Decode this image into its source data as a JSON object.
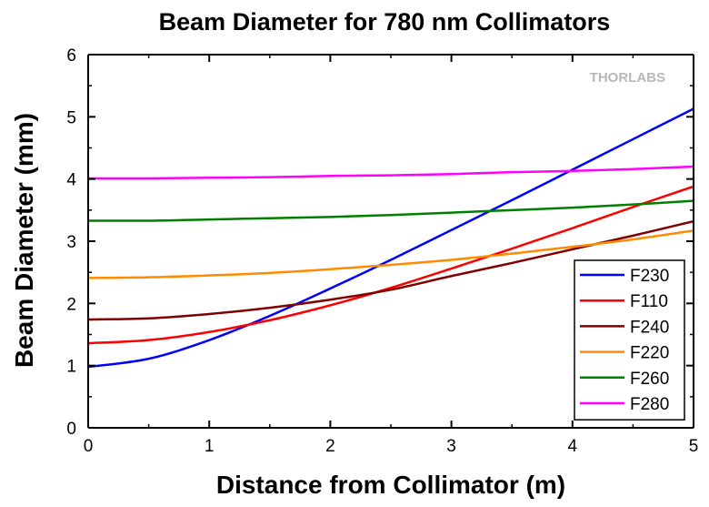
{
  "chart_data": {
    "type": "line",
    "title": "Beam Diameter for 780 nm Collimators",
    "xlabel": "Distance from Collimator (m)",
    "ylabel": "Beam Diameter (mm)",
    "xlim": [
      0,
      5
    ],
    "ylim": [
      0,
      6
    ],
    "xticks": [
      0,
      1,
      2,
      3,
      4,
      5
    ],
    "yticks": [
      0,
      1,
      2,
      3,
      4,
      5,
      6
    ],
    "grid": false,
    "legend_position": "bottom-right",
    "logo": "THORLABS",
    "series": [
      {
        "name": "F230",
        "color": "#0000ff",
        "x": [
          0,
          0.5,
          1,
          1.5,
          2,
          2.5,
          3,
          3.5,
          4,
          4.5,
          5
        ],
        "y": [
          0.98,
          1.11,
          1.41,
          1.8,
          2.24,
          2.7,
          3.18,
          3.66,
          4.15,
          4.64,
          5.13
        ]
      },
      {
        "name": "F110",
        "color": "#ff0000",
        "x": [
          0,
          0.5,
          1,
          1.5,
          2,
          2.5,
          3,
          3.5,
          4,
          4.5,
          5
        ],
        "y": [
          1.36,
          1.41,
          1.54,
          1.73,
          1.97,
          2.25,
          2.56,
          2.88,
          3.21,
          3.55,
          3.88
        ]
      },
      {
        "name": "F240",
        "color": "#800000",
        "x": [
          0,
          0.5,
          1,
          1.5,
          2,
          2.5,
          3,
          3.5,
          4,
          4.5,
          5
        ],
        "y": [
          1.74,
          1.76,
          1.83,
          1.93,
          2.06,
          2.22,
          2.44,
          2.65,
          2.87,
          3.09,
          3.32
        ]
      },
      {
        "name": "F220",
        "color": "#ff8c00",
        "x": [
          0,
          0.5,
          1,
          1.5,
          2,
          2.5,
          3,
          3.5,
          4,
          4.5,
          5
        ],
        "y": [
          2.41,
          2.42,
          2.45,
          2.49,
          2.55,
          2.62,
          2.7,
          2.8,
          2.91,
          3.03,
          3.17
        ]
      },
      {
        "name": "F260",
        "color": "#008000",
        "x": [
          0,
          0.5,
          1,
          1.5,
          2,
          2.5,
          3,
          3.5,
          4,
          4.5,
          5
        ],
        "y": [
          3.33,
          3.33,
          3.35,
          3.37,
          3.39,
          3.42,
          3.46,
          3.5,
          3.54,
          3.59,
          3.65
        ]
      },
      {
        "name": "F280",
        "color": "#ff00ff",
        "x": [
          0,
          0.5,
          1,
          1.5,
          2,
          2.5,
          3,
          3.5,
          4,
          4.5,
          5
        ],
        "y": [
          4.01,
          4.01,
          4.02,
          4.03,
          4.05,
          4.06,
          4.08,
          4.11,
          4.13,
          4.16,
          4.2
        ]
      }
    ]
  }
}
